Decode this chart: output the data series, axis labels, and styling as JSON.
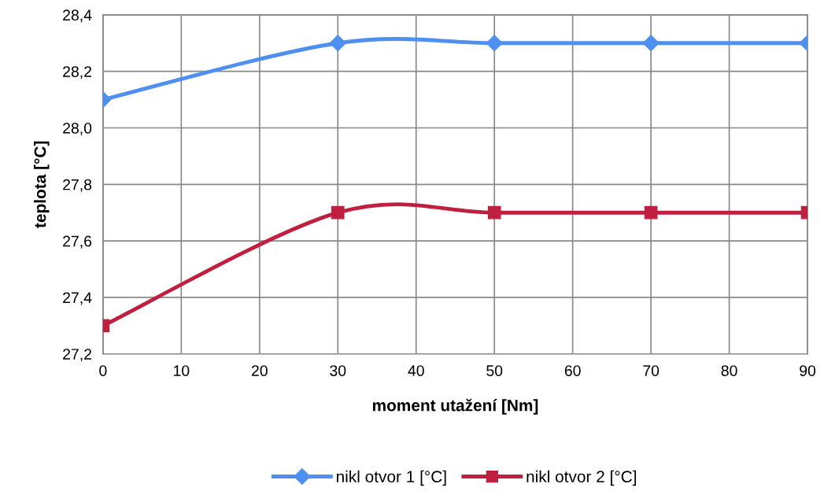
{
  "chart_data": {
    "type": "line",
    "xlabel": "moment utažení [Nm]",
    "ylabel": "teplota [°C]",
    "x": [
      0,
      30,
      50,
      70,
      90
    ],
    "series": [
      {
        "name": "nikl otvor 1 [°C]",
        "color": "#4f8ff0",
        "marker": "diamond",
        "values": [
          28.1,
          28.3,
          28.3,
          28.3,
          28.3
        ]
      },
      {
        "name": "nikl otvor 2 [°C]",
        "color": "#c0203f",
        "marker": "square",
        "values": [
          27.3,
          27.7,
          27.7,
          27.7,
          27.7
        ]
      }
    ],
    "xlim": [
      0,
      90
    ],
    "xticks": [
      0,
      10,
      20,
      30,
      40,
      50,
      60,
      70,
      80,
      90
    ],
    "ylim": [
      27.2,
      28.4
    ],
    "yticks": [
      {
        "value": 27.2,
        "label": "27,2"
      },
      {
        "value": 27.4,
        "label": "27,4"
      },
      {
        "value": 27.6,
        "label": "27,6"
      },
      {
        "value": 27.8,
        "label": "27,8"
      },
      {
        "value": 28.0,
        "label": "28,0"
      },
      {
        "value": 28.2,
        "label": "28,2"
      },
      {
        "value": 28.4,
        "label": "28,4"
      }
    ],
    "grid": true,
    "legend": "bottom",
    "line_style": "solid"
  }
}
